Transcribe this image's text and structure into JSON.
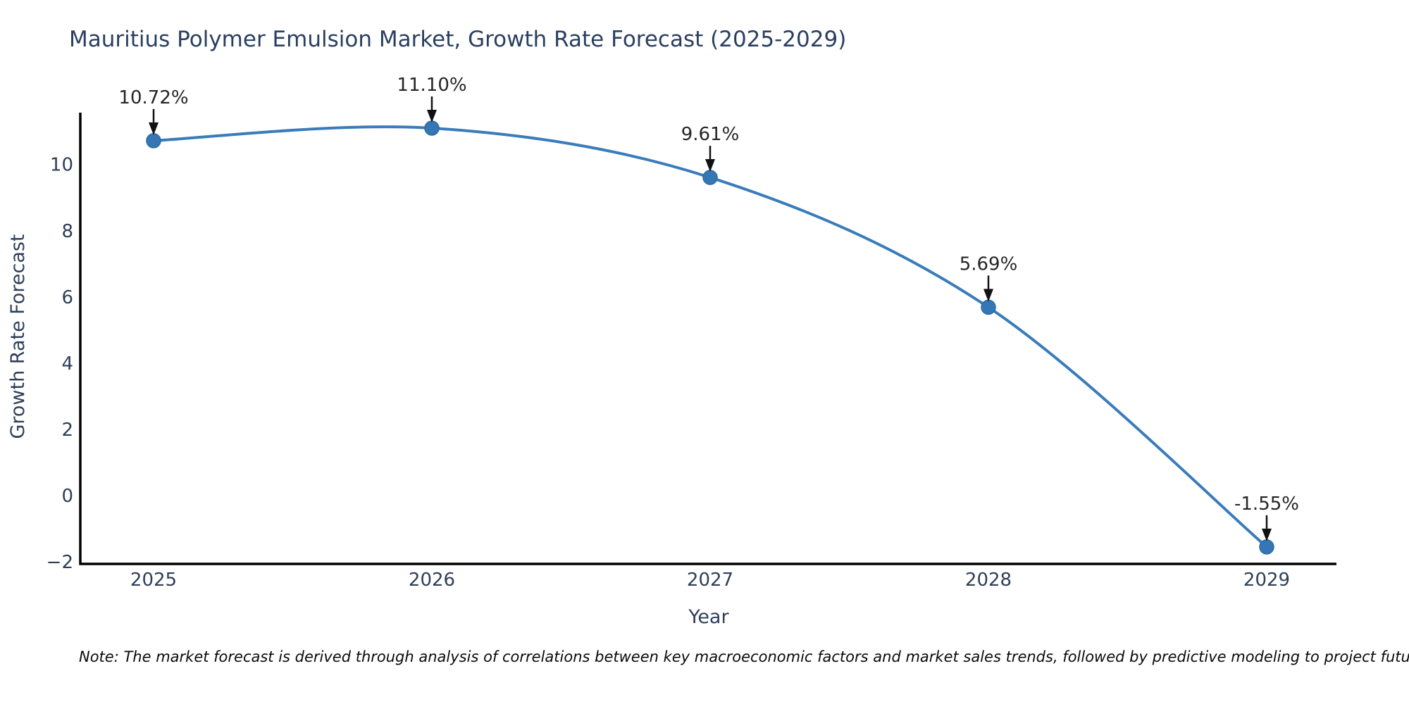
{
  "chart_data": {
    "type": "line",
    "title": "Mauritius Polymer Emulsion Market, Growth Rate Forecast (2025-2029)",
    "xlabel": "Year",
    "ylabel": "Growth Rate Forecast",
    "categories": [
      "2025",
      "2026",
      "2027",
      "2028",
      "2029"
    ],
    "values": [
      10.72,
      11.1,
      9.61,
      5.69,
      -1.55
    ],
    "point_labels": [
      "10.72%",
      "11.10%",
      "9.61%",
      "5.69%",
      "-1.55%"
    ],
    "yticks": [
      {
        "value": -2,
        "label": "−2"
      },
      {
        "value": 0,
        "label": "0"
      },
      {
        "value": 2,
        "label": "2"
      },
      {
        "value": 4,
        "label": "4"
      },
      {
        "value": 6,
        "label": "6"
      },
      {
        "value": 8,
        "label": "8"
      },
      {
        "value": 10,
        "label": "10"
      }
    ],
    "ylim": [
      -2.06,
      11.6
    ],
    "grid": false,
    "legend": null,
    "line_shape": "spline",
    "colors": {
      "line": "#3a7cba",
      "marker_fill": "#3577b4",
      "marker_stroke": "#2d6aa3",
      "axis": "#000000",
      "annotation_arrow": "#111111",
      "title": "#2a3f5f",
      "tick": "#2f3f58"
    },
    "note": "Note: The market forecast is derived through analysis of correlations between key macroeconomic factors and market sales trends, followed by predictive modeling to project future sales"
  }
}
